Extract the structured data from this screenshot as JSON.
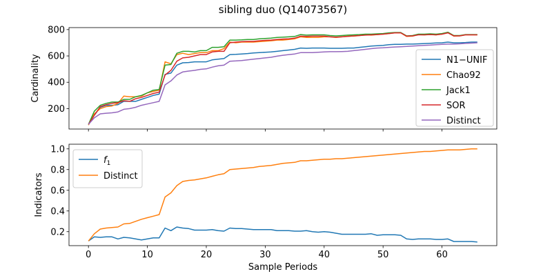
{
  "figure": {
    "title": "sibling duo (Q14073567)"
  },
  "chart_data": [
    {
      "type": "line",
      "ylabel": "Cardinality",
      "xlabel": "",
      "xlim": [
        -3.3,
        69.3
      ],
      "ylim": [
        45,
        815
      ],
      "yticks": [
        200,
        400,
        600,
        800
      ],
      "xticks": [
        0,
        10,
        20,
        30,
        40,
        50,
        60
      ],
      "show_x_tick_labels": false,
      "grid": false,
      "legend_position": "center-right",
      "x": [
        0,
        1,
        2,
        3,
        4,
        5,
        6,
        7,
        8,
        9,
        10,
        11,
        12,
        13,
        14,
        15,
        16,
        17,
        18,
        19,
        20,
        21,
        22,
        23,
        24,
        25,
        26,
        27,
        28,
        29,
        30,
        31,
        32,
        33,
        34,
        35,
        36,
        37,
        38,
        39,
        40,
        41,
        42,
        43,
        44,
        45,
        46,
        47,
        48,
        49,
        50,
        51,
        52,
        53,
        54,
        55,
        56,
        57,
        58,
        59,
        60,
        61,
        62,
        63,
        64,
        65,
        66
      ],
      "series": [
        {
          "name": "N1−UNIF",
          "color": "#1f77b4",
          "values": [
            80,
            150,
            210,
            225,
            225,
            230,
            255,
            255,
            255,
            270,
            285,
            300,
            310,
            460,
            470,
            530,
            548,
            550,
            555,
            555,
            555,
            570,
            575,
            580,
            610,
            612,
            615,
            618,
            622,
            625,
            628,
            630,
            635,
            640,
            645,
            650,
            660,
            658,
            660,
            660,
            660,
            658,
            658,
            658,
            660,
            660,
            665,
            670,
            675,
            678,
            680,
            685,
            688,
            688,
            690,
            690,
            692,
            694,
            696,
            698,
            700,
            705,
            700,
            700,
            702,
            705,
            705
          ]
        },
        {
          "name": "Chao92",
          "color": "#ff7f0e",
          "values": [
            75,
            160,
            200,
            215,
            220,
            240,
            295,
            290,
            290,
            295,
            320,
            330,
            340,
            555,
            540,
            610,
            620,
            610,
            618,
            625,
            625,
            640,
            640,
            655,
            705,
            700,
            705,
            705,
            705,
            708,
            712,
            715,
            720,
            720,
            725,
            730,
            745,
            740,
            740,
            740,
            745,
            745,
            740,
            745,
            750,
            750,
            755,
            760,
            758,
            762,
            765,
            770,
            775,
            775,
            748,
            750,
            762,
            760,
            763,
            760,
            765,
            778,
            750,
            752,
            760,
            760,
            760
          ]
        },
        {
          "name": "Jack1",
          "color": "#2ca02c",
          "values": [
            80,
            180,
            225,
            240,
            250,
            250,
            270,
            270,
            290,
            300,
            320,
            340,
            345,
            530,
            535,
            620,
            635,
            635,
            630,
            640,
            640,
            665,
            665,
            670,
            720,
            720,
            722,
            725,
            725,
            730,
            732,
            735,
            740,
            742,
            745,
            748,
            762,
            758,
            760,
            760,
            760,
            755,
            752,
            755,
            758,
            760,
            762,
            765,
            765,
            768,
            770,
            775,
            778,
            778,
            752,
            755,
            765,
            765,
            768,
            765,
            770,
            780,
            755,
            755,
            762,
            762,
            762
          ]
        },
        {
          "name": "SOR",
          "color": "#d62728",
          "values": [
            80,
            150,
            215,
            230,
            240,
            245,
            260,
            255,
            275,
            285,
            300,
            315,
            325,
            455,
            490,
            560,
            585,
            590,
            600,
            610,
            610,
            630,
            635,
            635,
            700,
            705,
            708,
            710,
            710,
            715,
            718,
            720,
            725,
            728,
            730,
            735,
            750,
            748,
            750,
            750,
            750,
            745,
            742,
            745,
            748,
            752,
            755,
            758,
            760,
            762,
            765,
            770,
            775,
            775,
            750,
            752,
            760,
            760,
            762,
            760,
            765,
            775,
            752,
            752,
            760,
            760,
            760
          ]
        },
        {
          "name": "Distinct",
          "color": "#9467bd",
          "values": [
            80,
            130,
            160,
            165,
            168,
            175,
            195,
            200,
            210,
            225,
            235,
            245,
            255,
            380,
            410,
            455,
            478,
            485,
            490,
            498,
            502,
            515,
            525,
            530,
            560,
            562,
            565,
            570,
            575,
            580,
            585,
            590,
            598,
            605,
            610,
            615,
            625,
            625,
            625,
            628,
            630,
            632,
            632,
            633,
            635,
            640,
            645,
            650,
            655,
            660,
            662,
            665,
            668,
            670,
            672,
            675,
            678,
            680,
            682,
            685,
            688,
            690,
            690,
            692,
            695,
            697,
            700
          ]
        }
      ]
    },
    {
      "type": "line",
      "ylabel": "Indicators",
      "xlabel": "Sample Periods",
      "xlim": [
        -3.3,
        69.3
      ],
      "ylim": [
        0.065,
        1.045
      ],
      "yticks": [
        0.2,
        0.4,
        0.6,
        0.8,
        1.0
      ],
      "ytick_labels": [
        "0.2",
        "0.4",
        "0.6",
        "0.8",
        "1.0"
      ],
      "xticks": [
        0,
        10,
        20,
        30,
        40,
        50,
        60
      ],
      "grid": false,
      "legend_position": "top-left",
      "x": [
        0,
        1,
        2,
        3,
        4,
        5,
        6,
        7,
        8,
        9,
        10,
        11,
        12,
        13,
        14,
        15,
        16,
        17,
        18,
        19,
        20,
        21,
        22,
        23,
        24,
        25,
        26,
        27,
        28,
        29,
        30,
        31,
        32,
        33,
        34,
        35,
        36,
        37,
        38,
        39,
        40,
        41,
        42,
        43,
        44,
        45,
        46,
        47,
        48,
        49,
        50,
        51,
        52,
        53,
        54,
        55,
        56,
        57,
        58,
        59,
        60,
        61,
        62,
        63,
        64,
        65,
        66
      ],
      "series": [
        {
          "name": "f",
          "name_subscript": "1",
          "color": "#1f77b4",
          "values": [
            0.11,
            0.15,
            0.145,
            0.15,
            0.15,
            0.13,
            0.145,
            0.14,
            0.13,
            0.12,
            0.13,
            0.14,
            0.14,
            0.235,
            0.21,
            0.245,
            0.235,
            0.23,
            0.215,
            0.215,
            0.215,
            0.22,
            0.21,
            0.205,
            0.235,
            0.23,
            0.23,
            0.225,
            0.22,
            0.22,
            0.22,
            0.22,
            0.21,
            0.21,
            0.21,
            0.205,
            0.205,
            0.21,
            0.2,
            0.195,
            0.2,
            0.195,
            0.185,
            0.175,
            0.175,
            0.175,
            0.175,
            0.175,
            0.18,
            0.165,
            0.17,
            0.17,
            0.17,
            0.165,
            0.13,
            0.125,
            0.13,
            0.13,
            0.13,
            0.125,
            0.125,
            0.13,
            0.105,
            0.105,
            0.105,
            0.105,
            0.1
          ]
        },
        {
          "name": "Distinct",
          "color": "#ff7f0e",
          "values": [
            0.11,
            0.18,
            0.225,
            0.235,
            0.24,
            0.245,
            0.275,
            0.28,
            0.3,
            0.32,
            0.335,
            0.35,
            0.365,
            0.535,
            0.575,
            0.645,
            0.685,
            0.695,
            0.7,
            0.71,
            0.72,
            0.735,
            0.75,
            0.76,
            0.8,
            0.805,
            0.81,
            0.815,
            0.82,
            0.83,
            0.835,
            0.84,
            0.85,
            0.86,
            0.865,
            0.87,
            0.885,
            0.885,
            0.89,
            0.895,
            0.9,
            0.9,
            0.905,
            0.905,
            0.91,
            0.915,
            0.92,
            0.925,
            0.93,
            0.935,
            0.94,
            0.945,
            0.95,
            0.955,
            0.96,
            0.965,
            0.97,
            0.975,
            0.975,
            0.98,
            0.985,
            0.99,
            0.99,
            0.99,
            0.995,
            1.0,
            1.0
          ]
        }
      ]
    }
  ]
}
